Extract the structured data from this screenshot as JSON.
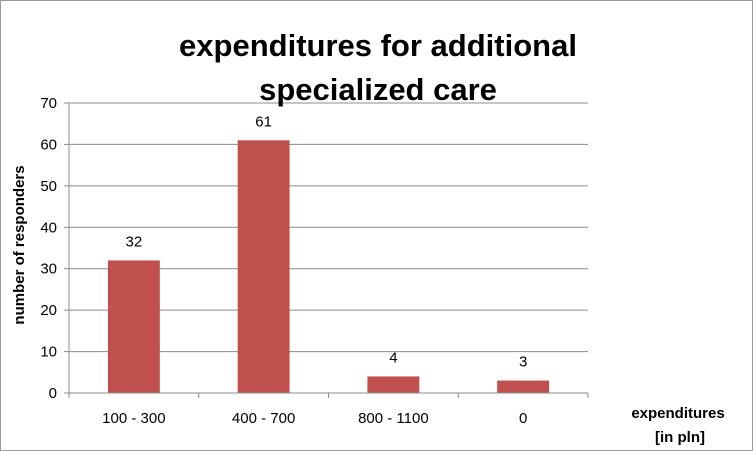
{
  "chart_data": {
    "type": "bar",
    "title_lines": [
      "expenditures for additional",
      "specialized care"
    ],
    "categories": [
      "100 - 300",
      "400 - 700",
      "800 - 1100",
      "0"
    ],
    "values": [
      32,
      61,
      4,
      3
    ],
    "data_labels": [
      "32",
      "61",
      "4",
      "3"
    ],
    "ylabel": "number of responders",
    "xlabel_lines": [
      "expenditures",
      "[in pln]"
    ],
    "ylim": [
      0,
      70
    ],
    "yticks": [
      0,
      10,
      20,
      30,
      40,
      50,
      60,
      70
    ],
    "grid": true,
    "legend": "none",
    "bar_color": "#c0504d",
    "grid_color": "#8c8c8c"
  }
}
